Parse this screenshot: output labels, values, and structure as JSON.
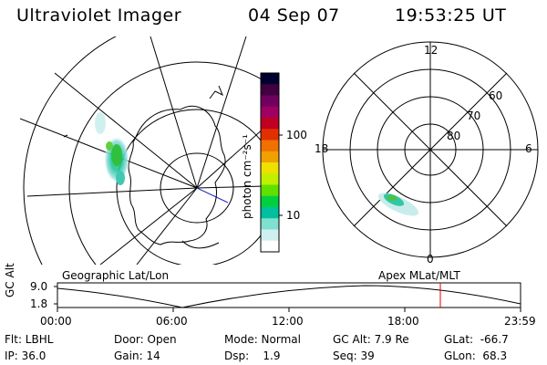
{
  "header": {
    "title": "Ultraviolet Imager",
    "date": "04 Sep 07",
    "time": "19:53:25 UT"
  },
  "colorbar": {
    "label": "photon cm⁻²s⁻¹",
    "ticks": [
      "100",
      "10"
    ],
    "colors": [
      "#000030",
      "#400040",
      "#700060",
      "#a00060",
      "#c00020",
      "#e03000",
      "#f07000",
      "#f0a000",
      "#f0e000",
      "#c0f000",
      "#60e000",
      "#00d040",
      "#00c0a0",
      "#80e0d0",
      "#d0f0f0",
      "#ffffff"
    ]
  },
  "geo_panel": {
    "label": "Geographic Lat/Lon"
  },
  "polar_panel": {
    "label": "Apex MLat/MLT",
    "mlt_labels": {
      "top": "12",
      "bottom": "0",
      "left": "18",
      "right": "6"
    },
    "lat_labels": [
      "60",
      "70",
      "80"
    ]
  },
  "timeline": {
    "ylabel": "GC Alt",
    "yticks": [
      "9.0",
      "1.8"
    ],
    "xticks": [
      "00:00",
      "06:00",
      "12:00",
      "18:00",
      "23:59"
    ],
    "cursor_color": "#e00000"
  },
  "status": {
    "flt": "Flt: LBHL",
    "door": "Door: Open",
    "mode": "Mode: Normal",
    "gc_alt": "GC Alt: 7.9 Re",
    "glat": "GLat:  -66.7",
    "ip": "IP: 36.0",
    "gain": "Gain: 14",
    "dsp": "Dsp:    1.9",
    "seq": "Seq: 39",
    "glon": "GLon:  68.3"
  }
}
